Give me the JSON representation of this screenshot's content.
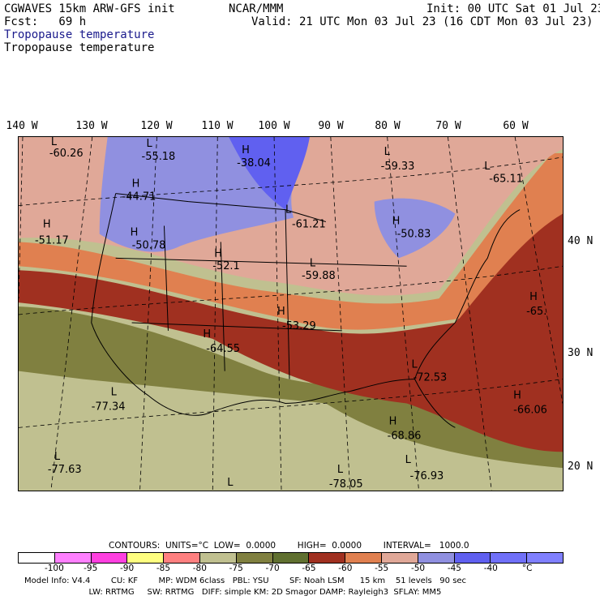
{
  "header": {
    "model": "CGWAVES 15km ARW-GFS init",
    "forecast": "Fcst:   69 h",
    "org": "NCAR/MMM",
    "init": "Init: 00 UTC Sat 01 Jul 23",
    "valid": "Valid: 21 UTC Mon 03 Jul 23 (16 CDT Mon 03 Jul 23)",
    "field_title_colored": "Tropopause temperature",
    "field_title": "Tropopause temperature"
  },
  "longitude_labels": [
    "140 W",
    "130 W",
    "120 W",
    "110 W",
    "100 W",
    "90 W",
    "80 W",
    "70 W",
    "60 W"
  ],
  "latitude_labels": [
    "40 N",
    "30 N",
    "20 N"
  ],
  "map_labels": [
    {
      "mark": "L",
      "value": "-60.26"
    },
    {
      "mark": "L",
      "value": "-55.18"
    },
    {
      "mark": "H",
      "value": "-38.04"
    },
    {
      "mark": "L",
      "value": "-59.33"
    },
    {
      "mark": "L",
      "value": "-65.11"
    },
    {
      "mark": "H",
      "value": "-44.71"
    },
    {
      "mark": "L",
      "value": "-61.21"
    },
    {
      "mark": "H",
      "value": "-50.83"
    },
    {
      "mark": "H",
      "value": "-51.17"
    },
    {
      "mark": "H",
      "value": "-50.78"
    },
    {
      "mark": "H",
      "value": "-52.1"
    },
    {
      "mark": "L",
      "value": "-59.88"
    },
    {
      "mark": "H",
      "value": "-65."
    },
    {
      "mark": "H",
      "value": "-53.29"
    },
    {
      "mark": "H",
      "value": "-64.55"
    },
    {
      "mark": "L",
      "value": "-72.53"
    },
    {
      "mark": "L",
      "value": "-77.34"
    },
    {
      "mark": "H",
      "value": "-66.06"
    },
    {
      "mark": "H",
      "value": "-68.86"
    },
    {
      "mark": "L",
      "value": "-77.63"
    },
    {
      "mark": "L",
      "value": "-78.05"
    },
    {
      "mark": "L",
      "value": "-76.93"
    },
    {
      "mark": "L",
      "value": ""
    }
  ],
  "contours_line": "CONTOURS:  UNITS=°C  LOW=  0.0000        HIGH=  0.0000        INTERVAL=   1000.0",
  "legend": {
    "colors": [
      "#ffffff",
      "#ff80ff",
      "#ff40e0",
      "#ffff80",
      "#ff8080",
      "#c0c090",
      "#808040",
      "#607030",
      "#a03020",
      "#e08050",
      "#e0a898",
      "#9090e0",
      "#6060f0",
      "#7070f8",
      "#8080ff"
    ],
    "ticks": [
      "-100",
      "-95",
      "-90",
      "-85",
      "-80",
      "-75",
      "-70",
      "-65",
      "-60",
      "-55",
      "-50",
      "-45",
      "-40",
      "°C"
    ]
  },
  "model_info": {
    "line1": "Model Info: V4.4        CU: KF        MP: WDM 6class   PBL: YSU        SF: Noah LSM      15 km    51 levels   90 sec",
    "line2": "                         LW: RRTMG     SW: RRTMG   DIFF: simple KM: 2D Smagor DAMP: Rayleigh3  SFLAY: MM5"
  }
}
